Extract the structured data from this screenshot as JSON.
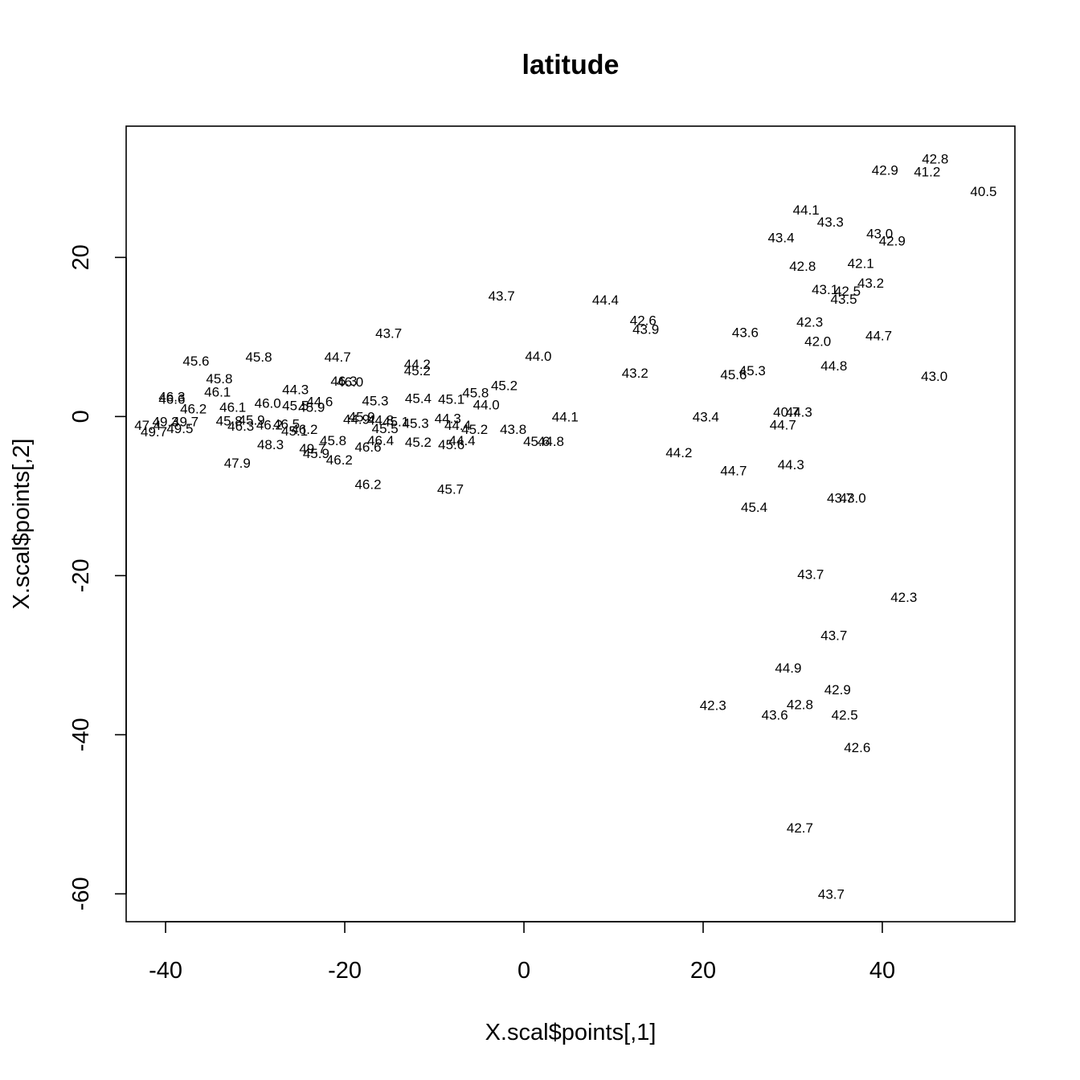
{
  "chart_data": {
    "type": "scatter",
    "title": "latitude",
    "xlabel": "X.scal$points[,1]",
    "ylabel": "X.scal$points[,2]",
    "xlim": [
      -44.4,
      54.8
    ],
    "ylim": [
      -63.5,
      36.5
    ],
    "x_ticks": [
      -40,
      -20,
      0,
      20,
      40
    ],
    "y_ticks": [
      -60,
      -40,
      -20,
      0,
      20
    ],
    "x_tick_labels": [
      "-40",
      "-20",
      "0",
      "20",
      "40"
    ],
    "y_tick_labels": [
      "-60",
      "-40",
      "-20",
      "0",
      "20"
    ],
    "marker": "text labels (latitude values)",
    "points": [
      {
        "x": 45.9,
        "y": 32.4,
        "label": "42.8"
      },
      {
        "x": 40.3,
        "y": 31.0,
        "label": "42.9"
      },
      {
        "x": 45.0,
        "y": 30.8,
        "label": "41.2"
      },
      {
        "x": 51.3,
        "y": 28.3,
        "label": "40.5"
      },
      {
        "x": 31.5,
        "y": 26.0,
        "label": "44.1"
      },
      {
        "x": 34.2,
        "y": 24.5,
        "label": "43.3"
      },
      {
        "x": 28.7,
        "y": 22.5,
        "label": "43.4"
      },
      {
        "x": 39.7,
        "y": 23.0,
        "label": "43.0"
      },
      {
        "x": 41.1,
        "y": 22.1,
        "label": "42.9"
      },
      {
        "x": 31.1,
        "y": 18.9,
        "label": "42.8"
      },
      {
        "x": 37.6,
        "y": 19.3,
        "label": "42.1"
      },
      {
        "x": 33.6,
        "y": 16.0,
        "label": "43.1"
      },
      {
        "x": 36.1,
        "y": 15.8,
        "label": "42.5"
      },
      {
        "x": 38.7,
        "y": 16.8,
        "label": "43.2"
      },
      {
        "x": 35.7,
        "y": 14.8,
        "label": "43.5"
      },
      {
        "x": -2.5,
        "y": 15.2,
        "label": "43.7"
      },
      {
        "x": 9.1,
        "y": 14.7,
        "label": "44.4"
      },
      {
        "x": 13.3,
        "y": 12.1,
        "label": "42.6"
      },
      {
        "x": 13.6,
        "y": 11.0,
        "label": "43.9"
      },
      {
        "x": 24.7,
        "y": 10.6,
        "label": "43.6"
      },
      {
        "x": 31.9,
        "y": 11.9,
        "label": "42.3"
      },
      {
        "x": 39.6,
        "y": 10.2,
        "label": "44.7"
      },
      {
        "x": 32.8,
        "y": 9.5,
        "label": "42.0"
      },
      {
        "x": -15.1,
        "y": 10.5,
        "label": "43.7"
      },
      {
        "x": 1.6,
        "y": 7.6,
        "label": "44.0"
      },
      {
        "x": 12.4,
        "y": 5.5,
        "label": "43.2"
      },
      {
        "x": 23.4,
        "y": 5.3,
        "label": "45.6"
      },
      {
        "x": 25.5,
        "y": 5.8,
        "label": "45.3"
      },
      {
        "x": 34.6,
        "y": 6.4,
        "label": "44.8"
      },
      {
        "x": 45.8,
        "y": 5.1,
        "label": "43.0"
      },
      {
        "x": -36.6,
        "y": 7.0,
        "label": "45.6"
      },
      {
        "x": -29.6,
        "y": 7.5,
        "label": "45.8"
      },
      {
        "x": -20.8,
        "y": 7.5,
        "label": "44.7"
      },
      {
        "x": -11.9,
        "y": 6.6,
        "label": "44.2"
      },
      {
        "x": -11.9,
        "y": 5.8,
        "label": "45.2"
      },
      {
        "x": -34.0,
        "y": 4.8,
        "label": "45.8"
      },
      {
        "x": -20.1,
        "y": 4.5,
        "label": "46.3"
      },
      {
        "x": -19.4,
        "y": 4.4,
        "label": "46.0"
      },
      {
        "x": -34.2,
        "y": 3.1,
        "label": "46.1"
      },
      {
        "x": -25.5,
        "y": 3.4,
        "label": "44.3"
      },
      {
        "x": -5.4,
        "y": 3.0,
        "label": "45.8"
      },
      {
        "x": -2.2,
        "y": 3.9,
        "label": "45.2"
      },
      {
        "x": -39.3,
        "y": 2.5,
        "label": "46.3"
      },
      {
        "x": -39.3,
        "y": 2.2,
        "label": "46.6"
      },
      {
        "x": -36.9,
        "y": 1.0,
        "label": "46.2"
      },
      {
        "x": -32.5,
        "y": 1.2,
        "label": "46.1"
      },
      {
        "x": -28.6,
        "y": 1.7,
        "label": "46.0"
      },
      {
        "x": -25.5,
        "y": 1.4,
        "label": "45.5"
      },
      {
        "x": -22.8,
        "y": 1.9,
        "label": "44.6"
      },
      {
        "x": -16.6,
        "y": 2.0,
        "label": "45.3"
      },
      {
        "x": -11.8,
        "y": 2.3,
        "label": "45.4"
      },
      {
        "x": -8.1,
        "y": 2.2,
        "label": "45.1"
      },
      {
        "x": -4.2,
        "y": 1.5,
        "label": "44.0"
      },
      {
        "x": -23.7,
        "y": 1.2,
        "label": "45.9"
      },
      {
        "x": -40.0,
        "y": -0.6,
        "label": "49.3"
      },
      {
        "x": -42.0,
        "y": -1.1,
        "label": "47.4"
      },
      {
        "x": -37.8,
        "y": -0.6,
        "label": "49.7"
      },
      {
        "x": -38.4,
        "y": -1.5,
        "label": "49.5"
      },
      {
        "x": -41.3,
        "y": -1.9,
        "label": "49.7"
      },
      {
        "x": -32.9,
        "y": -0.5,
        "label": "45.8"
      },
      {
        "x": -30.4,
        "y": -0.4,
        "label": "45.9"
      },
      {
        "x": -31.6,
        "y": -1.2,
        "label": "46.3"
      },
      {
        "x": -28.4,
        "y": -1.0,
        "label": "46.2"
      },
      {
        "x": -26.5,
        "y": -0.9,
        "label": "46.5"
      },
      {
        "x": -24.5,
        "y": -1.6,
        "label": "46.2"
      },
      {
        "x": -25.6,
        "y": -1.8,
        "label": "45.1"
      },
      {
        "x": -18.1,
        "y": 0.0,
        "label": "45.9"
      },
      {
        "x": -18.7,
        "y": -0.3,
        "label": "44.9"
      },
      {
        "x": -16.0,
        "y": -0.4,
        "label": "44.8"
      },
      {
        "x": -14.3,
        "y": -0.6,
        "label": "45.1"
      },
      {
        "x": -12.1,
        "y": -0.8,
        "label": "45.3"
      },
      {
        "x": -15.5,
        "y": -1.5,
        "label": "45.5"
      },
      {
        "x": -8.5,
        "y": -0.2,
        "label": "44.3"
      },
      {
        "x": -7.4,
        "y": -1.1,
        "label": "44.4"
      },
      {
        "x": -5.5,
        "y": -1.6,
        "label": "45.2"
      },
      {
        "x": -1.2,
        "y": -1.6,
        "label": "43.8"
      },
      {
        "x": 4.6,
        "y": 0.0,
        "label": "44.1"
      },
      {
        "x": 20.3,
        "y": 0.0,
        "label": "43.4"
      },
      {
        "x": 29.3,
        "y": 0.6,
        "label": "40.7"
      },
      {
        "x": 30.7,
        "y": 0.6,
        "label": "44.3"
      },
      {
        "x": 28.9,
        "y": -1.0,
        "label": "44.7"
      },
      {
        "x": -28.3,
        "y": -3.5,
        "label": "48.3"
      },
      {
        "x": -21.3,
        "y": -3.0,
        "label": "45.8"
      },
      {
        "x": -23.6,
        "y": -4.0,
        "label": "49.7"
      },
      {
        "x": -23.2,
        "y": -4.6,
        "label": "45.9"
      },
      {
        "x": -20.6,
        "y": -5.4,
        "label": "46.2"
      },
      {
        "x": -17.4,
        "y": -3.8,
        "label": "46.6"
      },
      {
        "x": -16.0,
        "y": -3.0,
        "label": "46.4"
      },
      {
        "x": -11.8,
        "y": -3.2,
        "label": "45.2"
      },
      {
        "x": -8.1,
        "y": -3.5,
        "label": "45.6"
      },
      {
        "x": -6.9,
        "y": -3.0,
        "label": "44.4"
      },
      {
        "x": 1.4,
        "y": -3.1,
        "label": "45.6"
      },
      {
        "x": 3.0,
        "y": -3.1,
        "label": "44.8"
      },
      {
        "x": 17.3,
        "y": -4.5,
        "label": "44.2"
      },
      {
        "x": -32.0,
        "y": -5.8,
        "label": "47.9"
      },
      {
        "x": 23.4,
        "y": -6.8,
        "label": "44.7"
      },
      {
        "x": 29.8,
        "y": -6.0,
        "label": "44.3"
      },
      {
        "x": -17.4,
        "y": -8.5,
        "label": "46.2"
      },
      {
        "x": -8.2,
        "y": -9.1,
        "label": "45.7"
      },
      {
        "x": 25.7,
        "y": -11.4,
        "label": "45.4"
      },
      {
        "x": 35.3,
        "y": -10.2,
        "label": "43.7"
      },
      {
        "x": 36.7,
        "y": -10.2,
        "label": "43.0"
      },
      {
        "x": 32.0,
        "y": -19.8,
        "label": "43.7"
      },
      {
        "x": 42.4,
        "y": -22.7,
        "label": "42.3"
      },
      {
        "x": 34.6,
        "y": -27.5,
        "label": "43.7"
      },
      {
        "x": 29.5,
        "y": -31.6,
        "label": "44.9"
      },
      {
        "x": 35.0,
        "y": -34.3,
        "label": "42.9"
      },
      {
        "x": 21.1,
        "y": -36.3,
        "label": "42.3"
      },
      {
        "x": 30.8,
        "y": -36.2,
        "label": "42.8"
      },
      {
        "x": 28.0,
        "y": -37.5,
        "label": "43.6"
      },
      {
        "x": 35.8,
        "y": -37.5,
        "label": "42.5"
      },
      {
        "x": 37.2,
        "y": -41.6,
        "label": "42.6"
      },
      {
        "x": 30.8,
        "y": -51.7,
        "label": "42.7"
      },
      {
        "x": 34.3,
        "y": -60.0,
        "label": "43.7"
      }
    ]
  }
}
